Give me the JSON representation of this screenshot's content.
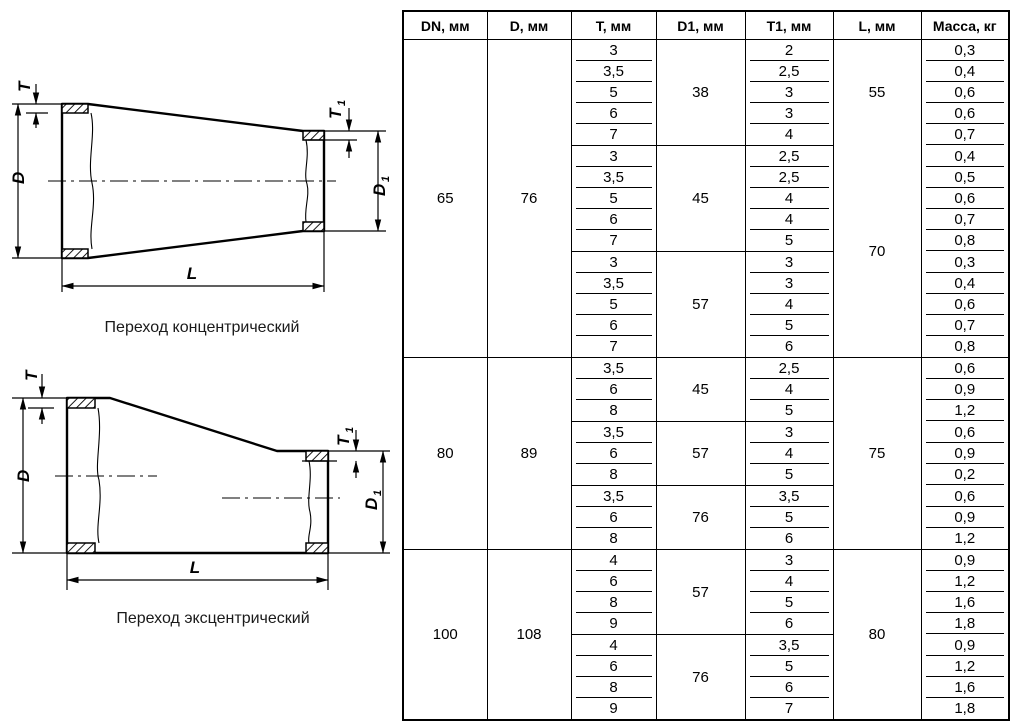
{
  "page": {
    "background": "#ffffff",
    "ink": "#000000"
  },
  "diagrams": [
    {
      "id": "concentric-reducer",
      "caption": "Переход концентрический",
      "labels": {
        "d": "D",
        "d1_base": "D",
        "d1_sub": "1",
        "t": "T",
        "t1_base": "T",
        "t1_sub": "1",
        "l": "L"
      }
    },
    {
      "id": "eccentric-reducer",
      "caption": "Переход эксцентрический",
      "labels": {
        "d": "D",
        "d1_base": "D",
        "d1_sub": "1",
        "t": "T",
        "t1_base": "T",
        "t1_sub": "1",
        "l": "L"
      }
    }
  ],
  "table": {
    "headers": [
      "DN, мм",
      "D, мм",
      "T, мм",
      "D1, мм",
      "T1, мм",
      "L, мм",
      "Масса, кг"
    ],
    "groups": [
      {
        "dn": "65",
        "d": "76",
        "l_cells": [
          {
            "value": "55",
            "span": 5
          },
          {
            "value": "70",
            "span": 10
          }
        ],
        "subgroups": [
          {
            "d1": "38",
            "rows": [
              [
                "3",
                "2",
                "0,3"
              ],
              [
                "3,5",
                "2,5",
                "0,4"
              ],
              [
                "5",
                "3",
                "0,6"
              ],
              [
                "6",
                "3",
                "0,6"
              ],
              [
                "7",
                "4",
                "0,7"
              ]
            ]
          },
          {
            "d1": "45",
            "rows": [
              [
                "3",
                "2,5",
                "0,4"
              ],
              [
                "3,5",
                "2,5",
                "0,5"
              ],
              [
                "5",
                "4",
                "0,6"
              ],
              [
                "6",
                "4",
                "0,7"
              ],
              [
                "7",
                "5",
                "0,8"
              ]
            ]
          },
          {
            "d1": "57",
            "rows": [
              [
                "3",
                "3",
                "0,3"
              ],
              [
                "3,5",
                "3",
                "0,4"
              ],
              [
                "5",
                "4",
                "0,6"
              ],
              [
                "6",
                "5",
                "0,7"
              ],
              [
                "7",
                "6",
                "0,8"
              ]
            ]
          }
        ]
      },
      {
        "dn": "80",
        "d": "89",
        "l_cells": [
          {
            "value": "75",
            "span": 9
          }
        ],
        "subgroups": [
          {
            "d1": "45",
            "rows": [
              [
                "3,5",
                "2,5",
                "0,6"
              ],
              [
                "6",
                "4",
                "0,9"
              ],
              [
                "8",
                "5",
                "1,2"
              ]
            ]
          },
          {
            "d1": "57",
            "rows": [
              [
                "3,5",
                "3",
                "0,6"
              ],
              [
                "6",
                "4",
                "0,9"
              ],
              [
                "8",
                "5",
                "0,2"
              ]
            ]
          },
          {
            "d1": "76",
            "rows": [
              [
                "3,5",
                "3,5",
                "0,6"
              ],
              [
                "6",
                "5",
                "0,9"
              ],
              [
                "8",
                "6",
                "1,2"
              ]
            ]
          }
        ]
      },
      {
        "dn": "100",
        "d": "108",
        "l_cells": [
          {
            "value": "80",
            "span": 8
          }
        ],
        "subgroups": [
          {
            "d1": "57",
            "rows": [
              [
                "4",
                "3",
                "0,9"
              ],
              [
                "6",
                "4",
                "1,2"
              ],
              [
                "8",
                "5",
                "1,6"
              ],
              [
                "9",
                "6",
                "1,8"
              ]
            ]
          },
          {
            "d1": "76",
            "rows": [
              [
                "4",
                "3,5",
                "0,9"
              ],
              [
                "6",
                "5",
                "1,2"
              ],
              [
                "8",
                "6",
                "1,6"
              ],
              [
                "9",
                "7",
                "1,8"
              ]
            ]
          }
        ]
      }
    ]
  }
}
